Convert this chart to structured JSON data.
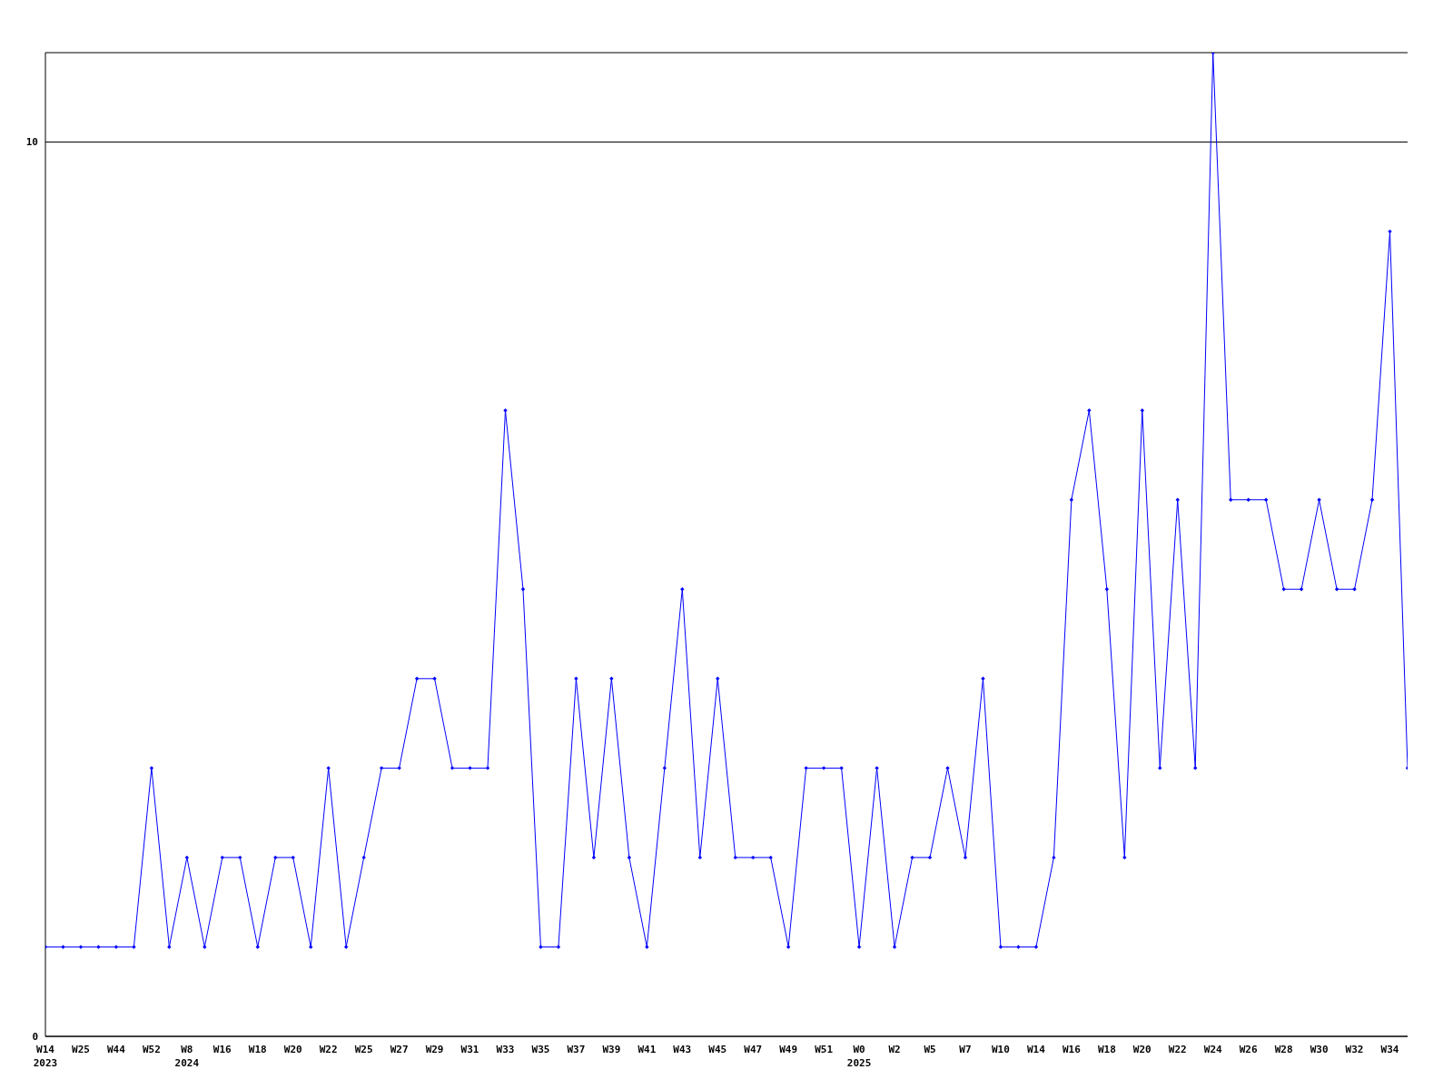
{
  "chart_data": {
    "type": "line",
    "categories": [
      "W14\n2023",
      null,
      "W25",
      null,
      "W44",
      null,
      "W52",
      null,
      "W8\n2024",
      null,
      "W16",
      null,
      "W18",
      null,
      "W20",
      null,
      "W22",
      null,
      "W25",
      null,
      "W27",
      null,
      "W29",
      null,
      "W31",
      null,
      "W33",
      null,
      "W35",
      null,
      "W37",
      null,
      "W39",
      null,
      "W41",
      null,
      "W43",
      null,
      "W45",
      null,
      "W47",
      null,
      "W49",
      null,
      "W51",
      null,
      "W0\n2025",
      null,
      "W2",
      null,
      "W5",
      null,
      "W7",
      null,
      "W10",
      null,
      "W14",
      null,
      "W16",
      null,
      "W18",
      null,
      "W20",
      null,
      "W22",
      null,
      "W24",
      null,
      "W26",
      null,
      "W28",
      null,
      "W30",
      null,
      "W32",
      null,
      "W34",
      null
    ],
    "series": [
      {
        "color": "#0000ff",
        "values": [
          1,
          1,
          1,
          1,
          1,
          1,
          3,
          1,
          2,
          1,
          2,
          2,
          1,
          2,
          2,
          1,
          3,
          1,
          2,
          3,
          3,
          4,
          4,
          3,
          3,
          3,
          7,
          5,
          1,
          1,
          4,
          2,
          4,
          2,
          1,
          3,
          5,
          2,
          4,
          2,
          2,
          2,
          1,
          3,
          3,
          3,
          1,
          3,
          1,
          2,
          2,
          3,
          2,
          4,
          1,
          1,
          1,
          2,
          6,
          7,
          5,
          2,
          7,
          3,
          6,
          3,
          11,
          6,
          6,
          6,
          5,
          5,
          6,
          5,
          5,
          6,
          9,
          3
        ]
      }
    ],
    "ylim": [
      0,
      11
    ],
    "yticks": [
      0,
      10
    ],
    "grid": "y",
    "marker": "diamond",
    "line_style": "solid",
    "legend": false
  }
}
